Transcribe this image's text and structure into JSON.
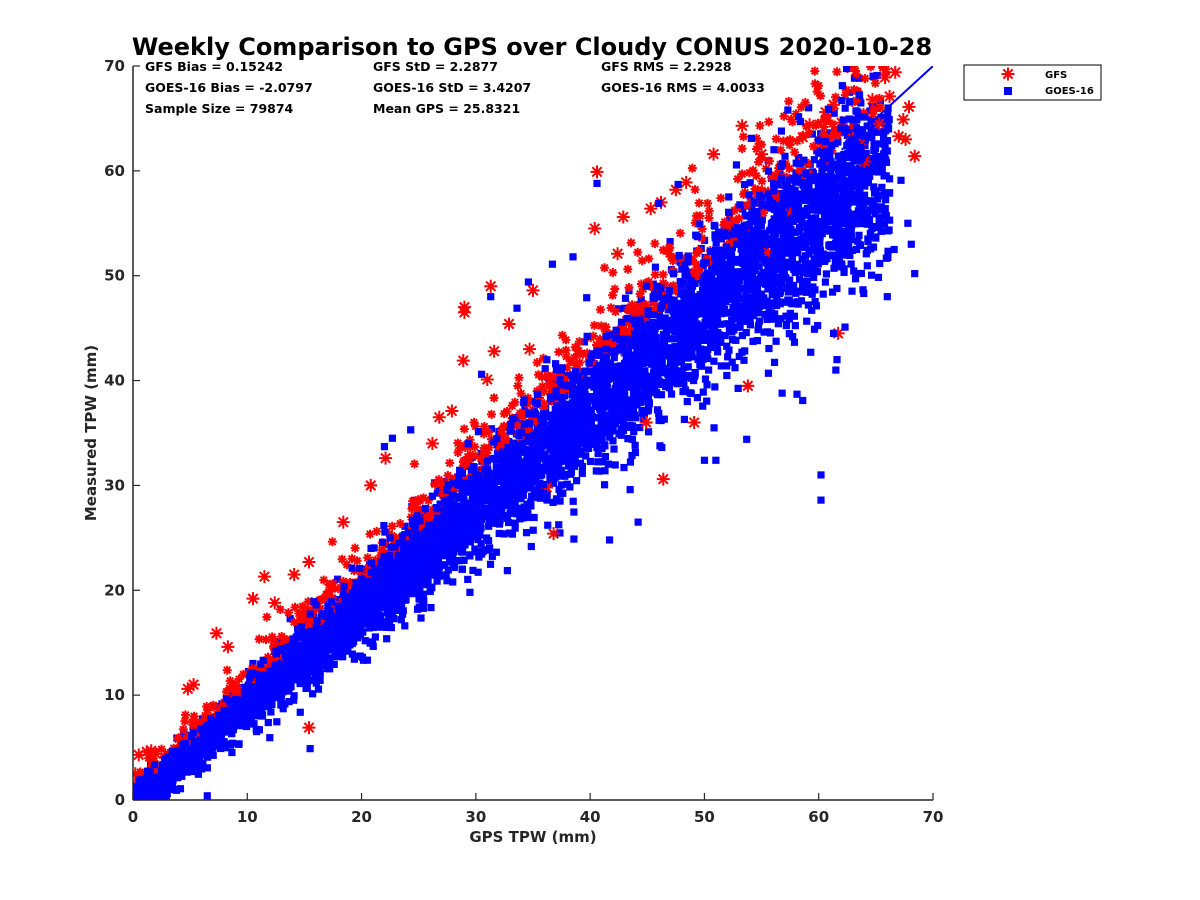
{
  "chart_data": {
    "type": "scatter",
    "title": "Weekly Comparison to GPS over Cloudy CONUS 2020-10-28",
    "xlabel": "GPS TPW (mm)",
    "ylabel": "Measured TPW (mm)",
    "xlim": [
      0,
      70
    ],
    "ylim": [
      0,
      70
    ],
    "xticks": [
      "0",
      "10",
      "20",
      "30",
      "40",
      "50",
      "60",
      "70"
    ],
    "yticks": [
      "0",
      "10",
      "20",
      "30",
      "40",
      "50",
      "60",
      "70"
    ],
    "grid": false,
    "legend_position": "outside top-right",
    "stats": [
      [
        "GFS Bias = 0.15242",
        "GFS StD = 2.2877",
        "GFS RMS = 2.2928"
      ],
      [
        "GOES-16 Bias = -2.0797",
        "GOES-16 StD = 3.4207",
        "GOES-16 RMS = 4.0033"
      ],
      [
        "Sample Size = 79874",
        "Mean GPS = 25.8321",
        ""
      ]
    ],
    "series": [
      {
        "name": "GFS",
        "marker": "asterisk",
        "color": "#ff0000",
        "outliers": [
          [
            0.2,
            2.5
          ],
          [
            0.5,
            4.3
          ],
          [
            1.2,
            4.6
          ],
          [
            1.6,
            4.7
          ],
          [
            2.0,
            4.4
          ],
          [
            4.8,
            10.6
          ],
          [
            5.3,
            11.0
          ],
          [
            7.3,
            15.9
          ],
          [
            8.3,
            14.6
          ],
          [
            10.5,
            19.2
          ],
          [
            11.5,
            21.3
          ],
          [
            12.4,
            18.8
          ],
          [
            14.1,
            21.5
          ],
          [
            15.4,
            22.7
          ],
          [
            15.4,
            6.9
          ],
          [
            20.8,
            30.0
          ],
          [
            22.1,
            32.6
          ],
          [
            26.2,
            34.0
          ],
          [
            26.8,
            36.5
          ],
          [
            27.9,
            37.1
          ],
          [
            29.0,
            47.0
          ],
          [
            29.0,
            46.5
          ],
          [
            28.9,
            41.9
          ],
          [
            31.0,
            40.1
          ],
          [
            31.3,
            49.0
          ],
          [
            31.6,
            42.8
          ],
          [
            32.9,
            45.4
          ],
          [
            35.0,
            48.6
          ],
          [
            36.2,
            29.8
          ],
          [
            36.8,
            25.4
          ],
          [
            40.4,
            54.5
          ],
          [
            40.6,
            59.9
          ],
          [
            42.4,
            52.1
          ],
          [
            42.8,
            43.0
          ],
          [
            42.9,
            55.6
          ],
          [
            44.9,
            36.0
          ],
          [
            45.3,
            56.4
          ],
          [
            46.2,
            57.0
          ],
          [
            46.4,
            30.6
          ],
          [
            47.5,
            58.2
          ],
          [
            48.4,
            58.9
          ],
          [
            49.1,
            36.0
          ],
          [
            50.8,
            61.6
          ],
          [
            53.3,
            64.3
          ],
          [
            53.8,
            39.5
          ],
          [
            55.0,
            61.6
          ],
          [
            58.6,
            63.2
          ],
          [
            59.2,
            64.4
          ],
          [
            60.6,
            65.6
          ],
          [
            61.3,
            66.3
          ],
          [
            61.7,
            44.5
          ],
          [
            62.0,
            64.6
          ],
          [
            63.0,
            63.1
          ],
          [
            63.6,
            62.5
          ],
          [
            64.0,
            60.9
          ],
          [
            64.7,
            66.8
          ],
          [
            65.3,
            64.5
          ],
          [
            65.8,
            68.9
          ],
          [
            66.2,
            67.1
          ],
          [
            66.7,
            69.4
          ],
          [
            67.0,
            63.3
          ],
          [
            67.4,
            64.9
          ],
          [
            67.9,
            66.1
          ],
          [
            68.4,
            61.4
          ],
          [
            67.6,
            63.0
          ],
          [
            60.5,
            60.7
          ],
          [
            57.5,
            55.9
          ],
          [
            55.6,
            52.2
          ],
          [
            34.7,
            43.0
          ],
          [
            18.4,
            26.5
          ]
        ]
      },
      {
        "name": "GOES-16",
        "marker": "square",
        "color": "#0000ff",
        "outliers": [
          [
            1.5,
            0.8
          ],
          [
            3.0,
            0.6
          ],
          [
            6.5,
            0.4
          ],
          [
            15.5,
            4.9
          ],
          [
            15.9,
            15.2
          ],
          [
            22.0,
            33.7
          ],
          [
            22.7,
            34.5
          ],
          [
            24.3,
            35.3
          ],
          [
            30.5,
            40.6
          ],
          [
            31.3,
            48.0
          ],
          [
            33.6,
            46.9
          ],
          [
            34.6,
            49.4
          ],
          [
            36.7,
            51.1
          ],
          [
            38.5,
            51.8
          ],
          [
            39.7,
            47.9
          ],
          [
            40.6,
            58.8
          ],
          [
            41.3,
            31.4
          ],
          [
            41.7,
            24.8
          ],
          [
            43.5,
            29.6
          ],
          [
            43.7,
            34.4
          ],
          [
            44.2,
            26.5
          ],
          [
            46.0,
            56.9
          ],
          [
            48.5,
            38.0
          ],
          [
            49.6,
            41.5
          ],
          [
            49.9,
            38.9
          ],
          [
            50.0,
            32.4
          ],
          [
            51.0,
            32.4
          ],
          [
            53.7,
            34.4
          ],
          [
            55.6,
            40.7
          ],
          [
            56.8,
            38.8
          ],
          [
            58.1,
            38.7
          ],
          [
            58.6,
            38.1
          ],
          [
            59.3,
            42.7
          ],
          [
            60.2,
            31.0
          ],
          [
            60.2,
            28.6
          ],
          [
            61.3,
            44.5
          ],
          [
            61.5,
            41.0
          ],
          [
            61.6,
            42.0
          ],
          [
            62.3,
            45.1
          ],
          [
            62.6,
            57.9
          ],
          [
            63.3,
            50.2
          ],
          [
            64.3,
            53.5
          ],
          [
            65.5,
            60.9
          ],
          [
            66.2,
            55.3
          ],
          [
            67.2,
            59.1
          ],
          [
            67.8,
            55.0
          ],
          [
            68.4,
            50.2
          ],
          [
            68.1,
            53.0
          ],
          [
            66.6,
            52.5
          ],
          [
            66.0,
            48.0
          ],
          [
            57.3,
            65.8
          ],
          [
            58.4,
            64.7
          ],
          [
            54.1,
            63.1
          ],
          [
            47.7,
            58.7
          ],
          [
            61.6,
            53.4
          ]
        ]
      }
    ],
    "reference_line": {
      "color": "#0000ff",
      "x": [
        62,
        70
      ],
      "y": [
        62,
        70
      ]
    }
  }
}
